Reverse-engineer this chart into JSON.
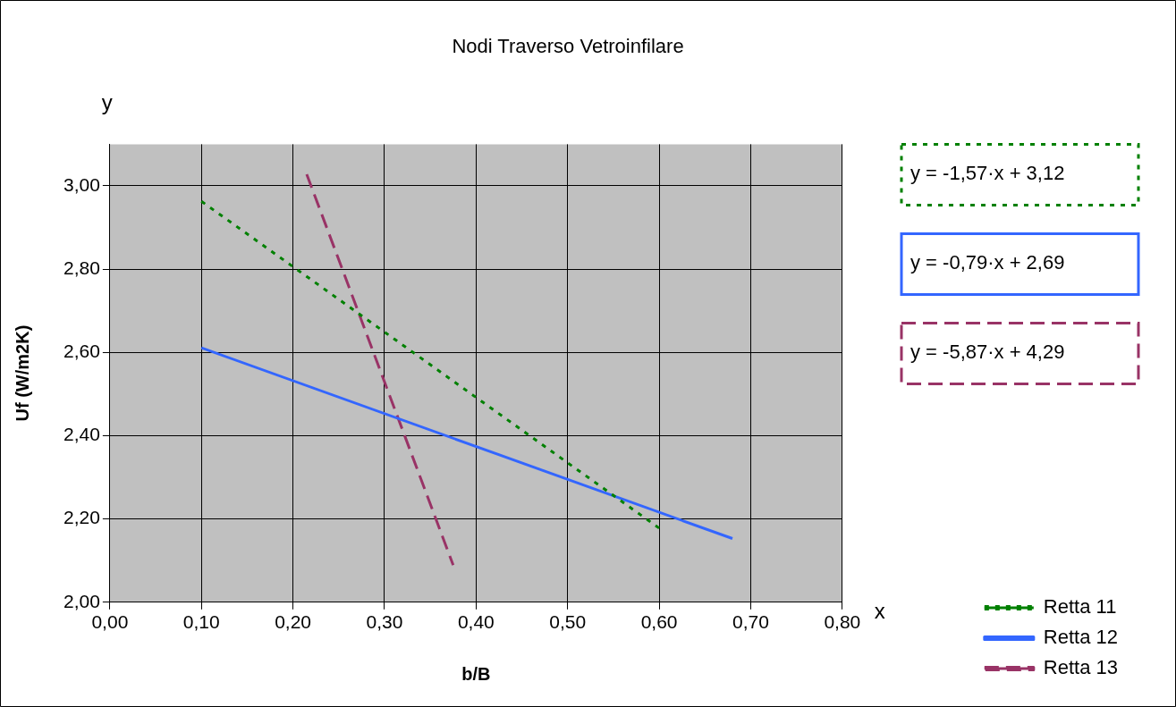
{
  "chart_data": {
    "type": "line",
    "title": "Nodi Traverso Vetroinfilare",
    "xlabel": "b/B",
    "ylabel": "Uf (W/m2K)",
    "xlim": [
      0,
      0.8
    ],
    "xticks": [
      {
        "value": 0,
        "label": "0,00"
      },
      {
        "value": 0.1,
        "label": "0,10"
      },
      {
        "value": 0.2,
        "label": "0,20"
      },
      {
        "value": 0.3,
        "label": "0,30"
      },
      {
        "value": 0.4,
        "label": "0,40"
      },
      {
        "value": 0.5,
        "label": "0,50"
      },
      {
        "value": 0.6,
        "label": "0,60"
      },
      {
        "value": 0.7,
        "label": "0,70"
      },
      {
        "value": 0.8,
        "label": "0,80"
      }
    ],
    "ylim": [
      2,
      3.1
    ],
    "yticks": [
      {
        "value": 2,
        "label": "2,00"
      },
      {
        "value": 2.2,
        "label": "2,20"
      },
      {
        "value": 2.4,
        "label": "2,40"
      },
      {
        "value": 2.6,
        "label": "2,60"
      },
      {
        "value": 2.8,
        "label": "2,80"
      },
      {
        "value": 3,
        "label": "3,00"
      }
    ],
    "series": [
      {
        "name": "Retta 11",
        "color": "#008000",
        "line_style": "dotted",
        "x": [
          0.1,
          0.6
        ],
        "values": [
          2.963,
          2.178
        ]
      },
      {
        "name": "Retta 12",
        "color": "#3366ff",
        "line_style": "solid",
        "x": [
          0.1,
          0.68
        ],
        "values": [
          2.611,
          2.153
        ]
      },
      {
        "name": "Retta 13",
        "color": "#993366",
        "line_style": "dashed",
        "x": [
          0.215,
          0.375
        ],
        "values": [
          3.028,
          2.089
        ]
      }
    ],
    "annotations": [
      "y",
      "x",
      "y = -1,57·x + 3,12",
      "y = -0,79·x + 2,69",
      "y = -5,87·x + 4,29"
    ],
    "grid": true,
    "legend": "bottom right",
    "marker": "none"
  }
}
